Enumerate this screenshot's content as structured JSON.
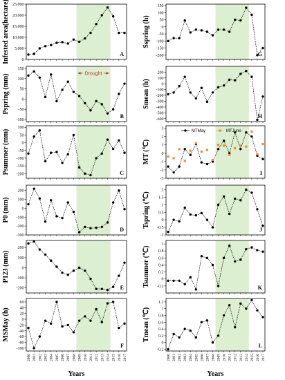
{
  "years": [
    "2000",
    "2001",
    "2002",
    "2003",
    "2004",
    "2005",
    "2006",
    "2007",
    "2008",
    "2009",
    "2010",
    "2011",
    "2012",
    "2013",
    "2014",
    "2015",
    "2016",
    "2017"
  ],
  "x_title": "Years",
  "drought_span": [
    2008.5,
    2014.5
  ],
  "drought_label": "Drought",
  "colors": {
    "shade": "#dcefd0",
    "line": "#000000",
    "orange": "#f0892a",
    "annotation": "#c0392b"
  },
  "chart_data": [
    {
      "id": "A",
      "type": "line",
      "ylabel": "Infested area(hectare)",
      "ylim": [
        0,
        25000
      ],
      "yticks": [
        0,
        5000,
        10000,
        15000,
        20000,
        25000
      ],
      "tick_labels": [
        "0",
        "5,000",
        "10,000",
        "15,000",
        "20,000",
        "25,000"
      ],
      "series": [
        {
          "values": [
            2200,
            2500,
            5000,
            6000,
            6500,
            7500,
            7800,
            7200,
            9000,
            8000,
            9500,
            12000,
            16000,
            20000,
            23500,
            19500,
            12000,
            12000
          ]
        }
      ]
    },
    {
      "id": "B",
      "type": "line",
      "ylabel": "Pspring (mm)",
      "ylim": [
        -110,
        160
      ],
      "yticks": [
        -100,
        -50,
        0,
        50,
        100,
        150
      ],
      "annotation": "Drought",
      "series": [
        {
          "values": [
            115,
            135,
            105,
            10,
            120,
            -10,
            45,
            85,
            35,
            15,
            -20,
            -55,
            -10,
            -25,
            -70,
            -50,
            25,
            75
          ]
        }
      ]
    },
    {
      "id": "C",
      "type": "line",
      "ylabel": "Psummer (mm)",
      "ylim": [
        -230,
        110
      ],
      "yticks": [
        -200,
        -150,
        -100,
        -50,
        0,
        50,
        100
      ],
      "series": [
        {
          "values": [
            -70,
            40,
            80,
            -120,
            -65,
            -60,
            -130,
            -75,
            50,
            -160,
            -200,
            -210,
            -100,
            -70,
            20,
            -40,
            15,
            -65
          ]
        }
      ]
    },
    {
      "id": "D",
      "type": "line",
      "ylabel": "P0 (mm)",
      "ylim": [
        -300,
        260
      ],
      "yticks": [
        -300,
        -200,
        -100,
        0,
        100,
        200
      ],
      "series": [
        {
          "values": [
            45,
            220,
            110,
            -150,
            90,
            -90,
            -110,
            65,
            -40,
            -270,
            -210,
            -225,
            -220,
            -210,
            -160,
            65,
            200,
            -10
          ]
        }
      ]
    },
    {
      "id": "E",
      "type": "line",
      "ylabel": "P123 (mm)",
      "ylim": [
        -250,
        270
      ],
      "yticks": [
        -200,
        -100,
        0,
        100,
        200
      ],
      "series": [
        {
          "values": [
            240,
            260,
            180,
            130,
            70,
            10,
            -50,
            -70,
            -30,
            0,
            -30,
            -110,
            -210,
            -210,
            -220,
            -190,
            -80,
            50
          ]
        }
      ]
    },
    {
      "id": "F",
      "type": "line",
      "ylabel": "MSMay (h)",
      "ylim": [
        -110,
        72
      ],
      "yticks": [
        -100,
        -80,
        -60,
        -40,
        -20,
        0,
        20,
        40,
        60
      ],
      "series": [
        {
          "values": [
            -30,
            -100,
            -60,
            -5,
            -15,
            60,
            -25,
            -20,
            -45,
            -5,
            10,
            -5,
            35,
            -10,
            55,
            60,
            -30,
            -15
          ]
        }
      ]
    },
    {
      "id": "G",
      "type": "line",
      "ylabel": "Sspring (h)",
      "ylim": [
        -230,
        160
      ],
      "yticks": [
        -200,
        -150,
        -100,
        -50,
        0,
        50,
        100,
        150
      ],
      "series": [
        {
          "values": [
            -100,
            -80,
            -80,
            45,
            -40,
            -20,
            -25,
            -35,
            -60,
            -20,
            -20,
            -35,
            50,
            45,
            135,
            85,
            -200,
            -150
          ]
        }
      ]
    },
    {
      "id": "H",
      "type": "line",
      "ylabel": "Smean (h)",
      "ylim": [
        -650,
        300
      ],
      "yticks": [
        -600,
        -500,
        -400,
        -300,
        -200,
        -100,
        0,
        100,
        200
      ],
      "series": [
        {
          "values": [
            -180,
            -150,
            -40,
            120,
            -150,
            -250,
            -70,
            -310,
            -150,
            -60,
            -30,
            70,
            60,
            170,
            220,
            120,
            -620,
            -220
          ]
        }
      ]
    },
    {
      "id": "I",
      "type": "line",
      "ylabel": "MT (℃)",
      "ylim": [
        -3,
        3.3
      ],
      "yticks": [
        -3,
        -2,
        -1,
        0,
        1,
        2,
        3
      ],
      "legend": [
        "MTMay",
        "MTJune"
      ],
      "series": [
        {
          "name": "MTMay",
          "values": [
            -1.6,
            -2.3,
            -1.6,
            0.5,
            -0.2,
            1.1,
            -1.1,
            -1.3,
            -1.0,
            0.5,
            1.5,
            0,
            2.5,
            0.5,
            2.5,
            2.0,
            -0.3,
            -0.7
          ]
        },
        {
          "name": "MTJune",
          "values": [
            -0.4,
            -0.6,
            0.5,
            -0.9,
            0.3,
            1.2,
            0.2,
            0.4,
            -0.8,
            1.0,
            0.9,
            -0.2,
            0.6,
            0.9,
            0.8,
            2.6,
            -0.1,
            1.1
          ]
        }
      ]
    },
    {
      "id": "J",
      "type": "line",
      "ylabel": "Tspring (℃)",
      "ylim": [
        -1,
        2.3
      ],
      "yticks": [
        -1,
        -0.5,
        0,
        0.5,
        1,
        1.5,
        2
      ],
      "series": [
        {
          "values": [
            -0.8,
            0,
            -0.1,
            0.8,
            0.35,
            0.3,
            0.45,
            0,
            -0.5,
            1.0,
            1.55,
            0.4,
            1.4,
            1.3,
            2.0,
            1.8,
            0.7,
            -0.4
          ]
        }
      ]
    },
    {
      "id": "K",
      "type": "line",
      "ylabel": "Tsummer (℃)",
      "ylim": [
        -0.4,
        1.1
      ],
      "yticks": [
        -0.2,
        0,
        0.2,
        0.4,
        0.6,
        0.8,
        1
      ],
      "series": [
        {
          "values": [
            -0.05,
            -0.05,
            -0.05,
            -0.15,
            0.05,
            -0.3,
            0.65,
            0.6,
            0.4,
            -0.2,
            0.6,
            0.95,
            0.5,
            0.55,
            0.85,
            0.9,
            0.82,
            0.78
          ]
        }
      ]
    },
    {
      "id": "L",
      "type": "line",
      "ylabel": "Tmean (℃)",
      "ylim": [
        -0.25,
        1.3
      ],
      "yticks": [
        -0.2,
        0,
        0.2,
        0.4,
        0.6,
        0.8,
        1,
        1.2
      ],
      "series": [
        {
          "values": [
            -0.2,
            0.25,
            0.15,
            0.4,
            0.35,
            0.15,
            0.6,
            0.65,
            0,
            0.2,
            0.8,
            1.1,
            0.45,
            1.15,
            1.0,
            1.25,
            0.95,
            0.75
          ]
        }
      ]
    }
  ]
}
